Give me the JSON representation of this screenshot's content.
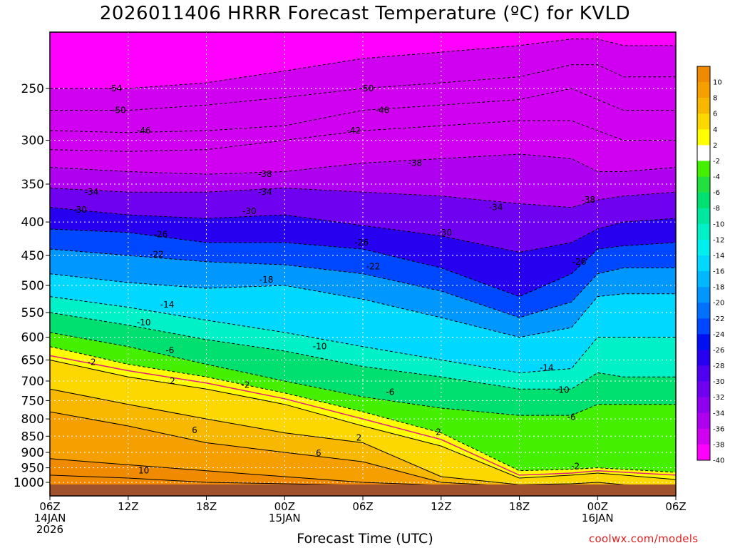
{
  "chart_data": {
    "type": "heatmap",
    "title": "2026011406 HRRR Forecast Temperature (ºC) for KVLD",
    "xlabel": "Forecast Time (UTC)",
    "credit": "coolwx.com/models",
    "y_axis": {
      "label": "",
      "scale": "log",
      "inverted": true,
      "range": [
        1030,
        200
      ],
      "ticks": [
        250,
        300,
        350,
        400,
        450,
        500,
        550,
        600,
        650,
        700,
        750,
        800,
        850,
        900,
        950,
        1000
      ]
    },
    "x_axis": {
      "range_hours": [
        0,
        48
      ],
      "ticks": [
        {
          "hour": 0,
          "lines": [
            "06Z",
            "14JAN",
            "2026"
          ]
        },
        {
          "hour": 6,
          "lines": [
            "12Z"
          ]
        },
        {
          "hour": 12,
          "lines": [
            "18Z"
          ]
        },
        {
          "hour": 18,
          "lines": [
            "00Z",
            "15JAN"
          ]
        },
        {
          "hour": 24,
          "lines": [
            "06Z"
          ]
        },
        {
          "hour": 30,
          "lines": [
            "12Z"
          ]
        },
        {
          "hour": 36,
          "lines": [
            "18Z"
          ]
        },
        {
          "hour": 42,
          "lines": [
            "00Z",
            "16JAN"
          ]
        },
        {
          "hour": 48,
          "lines": [
            "06Z"
          ]
        }
      ]
    },
    "grid": true,
    "colorbar": {
      "position": "right",
      "bins": [
        {
          "label": "10",
          "color": "#f08a00"
        },
        {
          "label": "8",
          "color": "#f5a000"
        },
        {
          "label": "6",
          "color": "#f8b800"
        },
        {
          "label": "4",
          "color": "#fcd800"
        },
        {
          "label": "2",
          "color": "#ffff00"
        },
        {
          "label": "-2",
          "color": "#ffffff"
        },
        {
          "label": "-4",
          "color": "#44f000"
        },
        {
          "label": "-6",
          "color": "#22e040"
        },
        {
          "label": "-8",
          "color": "#00e070"
        },
        {
          "label": "-10",
          "color": "#00e8a0"
        },
        {
          "label": "-12",
          "color": "#00f0c8"
        },
        {
          "label": "-14",
          "color": "#00f0f0"
        },
        {
          "label": "-16",
          "color": "#00d8ff"
        },
        {
          "label": "-18",
          "color": "#00b8ff"
        },
        {
          "label": "-20",
          "color": "#0098ff"
        },
        {
          "label": "-22",
          "color": "#0070ff"
        },
        {
          "label": "-24",
          "color": "#0048ff"
        },
        {
          "label": "-26",
          "color": "#0010f0"
        },
        {
          "label": "-28",
          "color": "#2800f0"
        },
        {
          "label": "-30",
          "color": "#5000f0"
        },
        {
          "label": "-32",
          "color": "#7000f0"
        },
        {
          "label": "-34",
          "color": "#9000f0"
        },
        {
          "label": "-36",
          "color": "#b000f0"
        },
        {
          "label": "-38",
          "color": "#d000f0"
        },
        {
          "label": "-40",
          "color": "#ff00ff"
        }
      ]
    },
    "isotherm_hours": [
      0,
      6,
      12,
      18,
      24,
      30,
      36,
      40,
      42,
      44,
      48
    ],
    "isotherms": [
      {
        "temp": 10,
        "levels": [
          975,
          985,
          1000,
          1005,
          1010,
          1015,
          1020,
          1020,
          1020,
          1020,
          1020
        ]
      },
      {
        "temp": 8,
        "levels": [
          920,
          940,
          960,
          980,
          1000,
          1010,
          1020,
          1020,
          1020,
          1020,
          1020
        ]
      },
      {
        "temp": 6,
        "levels": [
          780,
          820,
          870,
          900,
          930,
          1000,
          1015,
          1015,
          1015,
          1015,
          1015
        ]
      },
      {
        "temp": 4,
        "levels": [
          720,
          760,
          800,
          840,
          870,
          980,
          1008,
          1005,
          1000,
          1008,
          1015
        ]
      },
      {
        "temp": 2,
        "levels": [
          650,
          690,
          720,
          760,
          820,
          880,
          985,
          975,
          968,
          975,
          990
        ]
      },
      {
        "temp": -2,
        "levels": [
          620,
          660,
          690,
          730,
          780,
          840,
          960,
          955,
          950,
          955,
          965
        ]
      },
      {
        "temp": -6,
        "levels": [
          590,
          620,
          660,
          700,
          740,
          770,
          790,
          790,
          760,
          760,
          760
        ]
      },
      {
        "temp": -10,
        "levels": [
          550,
          575,
          605,
          630,
          665,
          690,
          720,
          720,
          680,
          690,
          690
        ]
      },
      {
        "temp": -14,
        "levels": [
          520,
          540,
          565,
          590,
          620,
          650,
          680,
          670,
          600,
          600,
          600
        ]
      },
      {
        "temp": -18,
        "levels": [
          480,
          495,
          505,
          500,
          525,
          560,
          600,
          580,
          520,
          515,
          515
        ]
      },
      {
        "temp": -22,
        "levels": [
          440,
          450,
          460,
          465,
          480,
          510,
          560,
          530,
          480,
          470,
          470
        ]
      },
      {
        "temp": -26,
        "levels": [
          410,
          415,
          430,
          430,
          440,
          470,
          520,
          480,
          440,
          435,
          430
        ]
      },
      {
        "temp": -30,
        "levels": [
          380,
          390,
          395,
          390,
          405,
          420,
          445,
          430,
          410,
          400,
          395
        ]
      },
      {
        "temp": -34,
        "levels": [
          355,
          360,
          360,
          355,
          360,
          365,
          375,
          380,
          370,
          365,
          360
        ]
      },
      {
        "temp": -38,
        "levels": [
          330,
          335,
          338,
          335,
          325,
          320,
          315,
          320,
          335,
          335,
          330
        ]
      },
      {
        "temp": -42,
        "levels": [
          310,
          312,
          310,
          300,
          290,
          285,
          280,
          280,
          290,
          300,
          300
        ]
      },
      {
        "temp": -46,
        "levels": [
          290,
          292,
          290,
          285,
          270,
          265,
          260,
          250,
          260,
          270,
          270
        ]
      },
      {
        "temp": -50,
        "levels": [
          270,
          270,
          265,
          258,
          250,
          245,
          240,
          230,
          230,
          240,
          240
        ]
      },
      {
        "temp": -54,
        "levels": [
          250,
          250,
          245,
          235,
          225,
          220,
          215,
          210,
          210,
          215,
          215
        ]
      }
    ],
    "freezing_line": {
      "temp": 0,
      "levels": [
        640,
        675,
        705,
        745,
        800,
        860,
        975,
        968,
        960,
        965,
        975
      ]
    },
    "contour_labels": [
      {
        "text": "-54",
        "hour": 5.0,
        "level": 250
      },
      {
        "text": "-50",
        "hour": 5.3,
        "level": 270
      },
      {
        "text": "-46",
        "hour": 7.2,
        "level": 290
      },
      {
        "text": "-50",
        "hour": 24.3,
        "level": 250
      },
      {
        "text": "-46",
        "hour": 25.5,
        "level": 270
      },
      {
        "text": "-42",
        "hour": 23.3,
        "level": 290
      },
      {
        "text": "-38",
        "hour": 16.5,
        "level": 338
      },
      {
        "text": "-38",
        "hour": 28.0,
        "level": 325
      },
      {
        "text": "-38",
        "hour": 41.3,
        "level": 370
      },
      {
        "text": "-34",
        "hour": 3.2,
        "level": 360
      },
      {
        "text": "-34",
        "hour": 16.5,
        "level": 360
      },
      {
        "text": "-34",
        "hour": 34.2,
        "level": 380
      },
      {
        "text": "-30",
        "hour": 2.3,
        "level": 383
      },
      {
        "text": "-30",
        "hour": 15.3,
        "level": 385
      },
      {
        "text": "-30",
        "hour": 30.3,
        "level": 415
      },
      {
        "text": "-26",
        "hour": 8.5,
        "level": 418
      },
      {
        "text": "-26",
        "hour": 23.9,
        "level": 430
      },
      {
        "text": "-26",
        "hour": 40.6,
        "level": 460
      },
      {
        "text": "-22",
        "hour": 8.2,
        "level": 448
      },
      {
        "text": "-22",
        "hour": 24.8,
        "level": 468
      },
      {
        "text": "-18",
        "hour": 16.6,
        "level": 490
      },
      {
        "text": "-14",
        "hour": 9.0,
        "level": 535
      },
      {
        "text": "-14",
        "hour": 38.1,
        "level": 668
      },
      {
        "text": "-10",
        "hour": 7.2,
        "level": 570
      },
      {
        "text": "-10",
        "hour": 20.7,
        "level": 620
      },
      {
        "text": "-10",
        "hour": 39.3,
        "level": 722
      },
      {
        "text": "-6",
        "hour": 9.2,
        "level": 628
      },
      {
        "text": "-6",
        "hour": 26.1,
        "level": 728
      },
      {
        "text": "-6",
        "hour": 40.0,
        "level": 795
      },
      {
        "text": "-2",
        "hour": 3.2,
        "level": 655
      },
      {
        "text": "-2",
        "hour": 15.0,
        "level": 710
      },
      {
        "text": "-2",
        "hour": 40.3,
        "level": 945
      },
      {
        "text": "2",
        "hour": 9.4,
        "level": 700
      },
      {
        "text": "2",
        "hour": 23.7,
        "level": 855
      },
      {
        "text": "2",
        "hour": 29.8,
        "level": 838
      },
      {
        "text": "6",
        "hour": 11.1,
        "level": 832
      },
      {
        "text": "6",
        "hour": 20.6,
        "level": 902
      },
      {
        "text": "10",
        "hour": 7.2,
        "level": 960
      }
    ]
  }
}
